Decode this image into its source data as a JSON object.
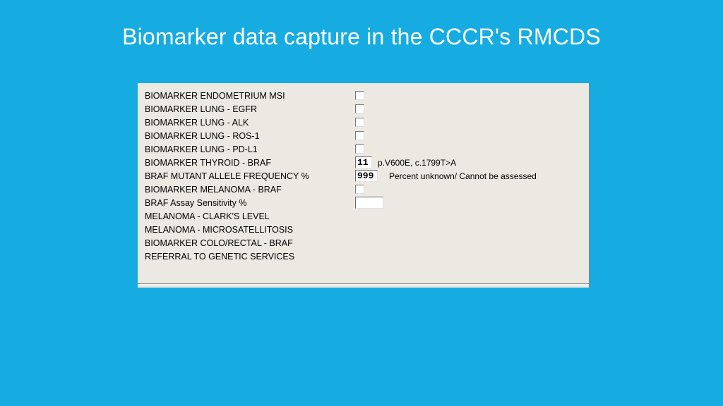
{
  "title": "Biomarker data capture in the CCCR's RMCDS",
  "colors": {
    "background": "#16ace2",
    "title_text": "#ffffff",
    "panel_bg": "#ece9e2",
    "label_text": "#000000"
  },
  "rows": [
    {
      "label": "BIOMARKER ENDOMETRIUM MSI",
      "control": "checkbox"
    },
    {
      "label": "BIOMARKER LUNG - EGFR",
      "control": "checkbox"
    },
    {
      "label": "BIOMARKER LUNG - ALK",
      "control": "checkbox"
    },
    {
      "label": "BIOMARKER LUNG - ROS-1",
      "control": "checkbox"
    },
    {
      "label": "BIOMARKER LUNG - PD-L1",
      "control": "checkbox"
    },
    {
      "label": "BIOMARKER THYROID - BRAF",
      "control": "value",
      "value": "11",
      "suffix": "p.V600E, c.1799T>A"
    },
    {
      "label": "BRAF MUTANT ALLELE FREQUENCY %",
      "control": "value",
      "value": "999",
      "suffix": "Percent unknown/ Cannot be assessed"
    },
    {
      "label": "BIOMARKER MELANOMA - BRAF",
      "control": "checkbox"
    },
    {
      "label": "BRAF Assay Sensitivity %",
      "control": "wide"
    },
    {
      "label": "MELANOMA - CLARK'S LEVEL",
      "control": "none"
    },
    {
      "label": "MELANOMA - MICROSATELLITOSIS",
      "control": "none"
    },
    {
      "label": "BIOMARKER COLO/RECTAL - BRAF",
      "control": "none"
    },
    {
      "label": "REFERRAL TO GENETIC SERVICES",
      "control": "none"
    }
  ]
}
